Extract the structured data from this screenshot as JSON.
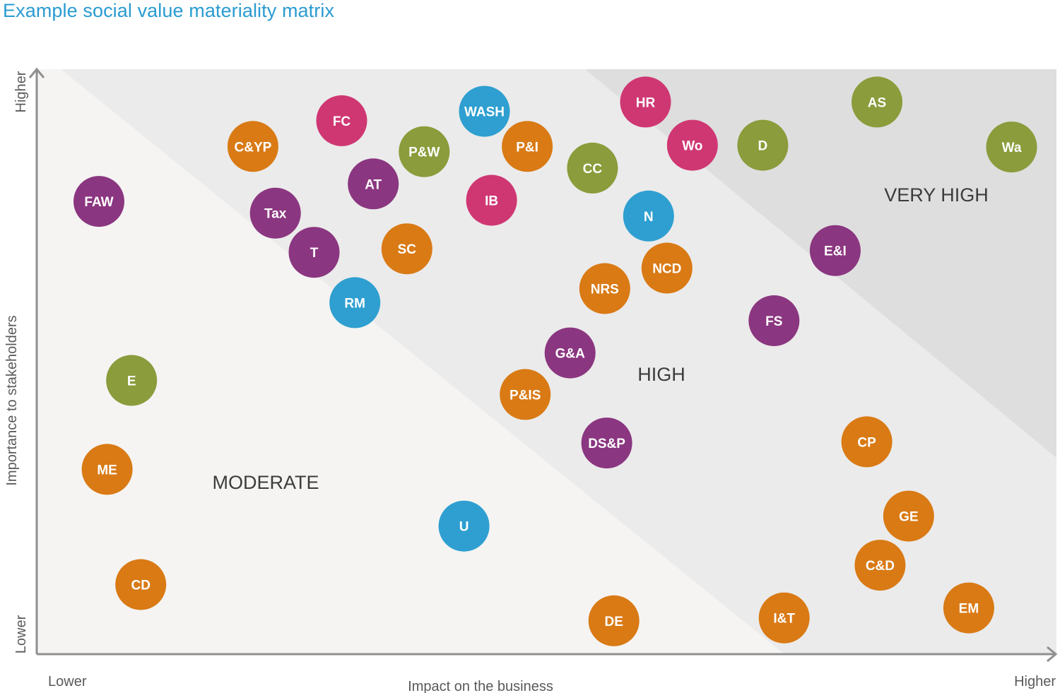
{
  "title": "Example social value materiality matrix",
  "colors": {
    "orange": "#d97a15",
    "magenta": "#cf3773",
    "purple": "#8b3680",
    "green": "#8a9c3b",
    "blue": "#2e9fd0"
  },
  "chart_data": {
    "type": "scatter",
    "title": "Example social value materiality matrix",
    "xlabel": "Impact on the business",
    "ylabel": "Importance to stakeholders",
    "x_tick_labels": {
      "low": "Lower",
      "high": "Higher"
    },
    "y_tick_labels": {
      "low": "Lower",
      "high": "Higher"
    },
    "xlim": [
      0,
      100
    ],
    "ylim": [
      0,
      100
    ],
    "zones": [
      {
        "label": "MODERATE"
      },
      {
        "label": "HIGH"
      },
      {
        "label": "VERY HIGH"
      }
    ],
    "points": [
      {
        "label": "FC",
        "x": 29.9,
        "y": 91.2,
        "color": "magenta"
      },
      {
        "label": "WASH",
        "x": 43.9,
        "y": 92.8,
        "color": "blue"
      },
      {
        "label": "HR",
        "x": 59.7,
        "y": 94.4,
        "color": "magenta"
      },
      {
        "label": "AS",
        "x": 82.4,
        "y": 94.4,
        "color": "green"
      },
      {
        "label": "C&YP",
        "x": 21.2,
        "y": 86.8,
        "color": "orange"
      },
      {
        "label": "P&W",
        "x": 38.0,
        "y": 85.9,
        "color": "green"
      },
      {
        "label": "P&I",
        "x": 48.1,
        "y": 86.8,
        "color": "orange"
      },
      {
        "label": "Wo",
        "x": 64.3,
        "y": 87.0,
        "color": "magenta"
      },
      {
        "label": "D",
        "x": 71.2,
        "y": 87.0,
        "color": "green"
      },
      {
        "label": "Wa",
        "x": 95.6,
        "y": 86.7,
        "color": "green"
      },
      {
        "label": "CC",
        "x": 54.5,
        "y": 83.1,
        "color": "green"
      },
      {
        "label": "AT",
        "x": 33.0,
        "y": 80.4,
        "color": "purple"
      },
      {
        "label": "FAW",
        "x": 6.1,
        "y": 77.4,
        "color": "purple"
      },
      {
        "label": "IB",
        "x": 44.6,
        "y": 77.6,
        "color": "magenta"
      },
      {
        "label": "Tax",
        "x": 23.4,
        "y": 75.4,
        "color": "purple"
      },
      {
        "label": "N",
        "x": 60.0,
        "y": 74.9,
        "color": "blue"
      },
      {
        "label": "SC",
        "x": 36.3,
        "y": 69.3,
        "color": "orange"
      },
      {
        "label": "E&I",
        "x": 78.3,
        "y": 69.0,
        "color": "purple"
      },
      {
        "label": "T",
        "x": 27.2,
        "y": 68.7,
        "color": "purple"
      },
      {
        "label": "NCD",
        "x": 61.8,
        "y": 66.0,
        "color": "orange"
      },
      {
        "label": "NRS",
        "x": 55.7,
        "y": 62.5,
        "color": "orange"
      },
      {
        "label": "RM",
        "x": 31.2,
        "y": 60.1,
        "color": "blue"
      },
      {
        "label": "FS",
        "x": 72.3,
        "y": 57.0,
        "color": "purple"
      },
      {
        "label": "G&A",
        "x": 52.3,
        "y": 51.5,
        "color": "purple"
      },
      {
        "label": "P&IS",
        "x": 47.9,
        "y": 44.4,
        "color": "orange"
      },
      {
        "label": "E",
        "x": 9.3,
        "y": 46.8,
        "color": "green"
      },
      {
        "label": "CP",
        "x": 81.4,
        "y": 36.3,
        "color": "orange"
      },
      {
        "label": "DS&P",
        "x": 55.9,
        "y": 36.1,
        "color": "purple"
      },
      {
        "label": "ME",
        "x": 6.9,
        "y": 31.6,
        "color": "orange"
      },
      {
        "label": "GE",
        "x": 85.5,
        "y": 23.6,
        "color": "orange"
      },
      {
        "label": "U",
        "x": 41.9,
        "y": 21.9,
        "color": "blue"
      },
      {
        "label": "C&D",
        "x": 82.7,
        "y": 15.2,
        "color": "orange"
      },
      {
        "label": "EM",
        "x": 91.4,
        "y": 7.9,
        "color": "orange"
      },
      {
        "label": "CD",
        "x": 10.2,
        "y": 11.9,
        "color": "orange"
      },
      {
        "label": "I&T",
        "x": 73.3,
        "y": 6.2,
        "color": "orange"
      },
      {
        "label": "DE",
        "x": 56.6,
        "y": 5.7,
        "color": "orange"
      }
    ]
  }
}
